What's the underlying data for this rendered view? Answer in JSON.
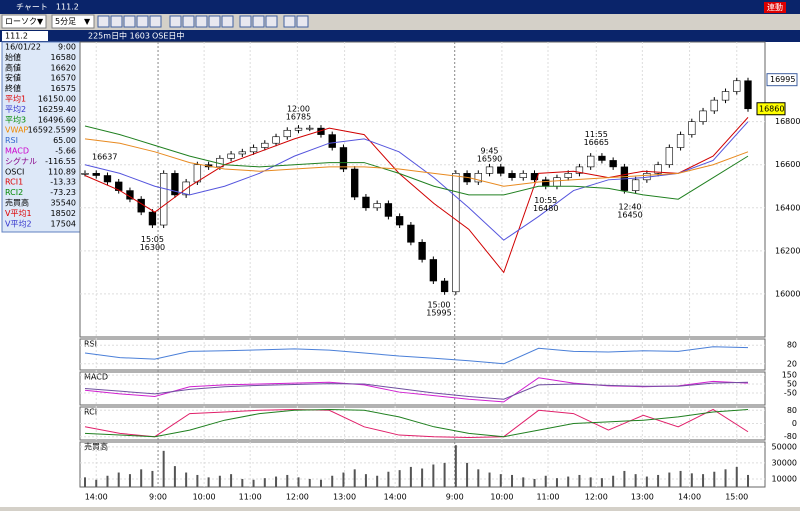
{
  "window": {
    "title": "チャート　111.2",
    "button": "連動"
  },
  "toolbar": {
    "style": "ローソク",
    "period": "5分足"
  },
  "symbol_bar": {
    "code": "111.2",
    "name": "225m日中 1603",
    "session": "OSE日中"
  },
  "info": {
    "rows": [
      [
        "16/01/22",
        "9:00"
      ],
      [
        "始値",
        "16580"
      ],
      [
        "高値",
        "16620"
      ],
      [
        "安値",
        "16570"
      ],
      [
        "終値",
        "16575"
      ],
      [
        "平均1",
        "16150.00"
      ],
      [
        "平均2",
        "16259.40"
      ],
      [
        "平均3",
        "16496.60"
      ],
      [
        "VWAP",
        "16592.5599"
      ],
      [
        "RSI",
        "65.00"
      ],
      [
        "MACD",
        "-5.66"
      ],
      [
        "シグナル",
        "-116.55"
      ],
      [
        "OSCI",
        "110.89"
      ],
      [
        "RCI1",
        "-13.33"
      ],
      [
        "RCI2",
        "-73.23"
      ],
      [
        "売買高",
        "35540"
      ],
      [
        "V平均1",
        "18502"
      ],
      [
        "V平均2",
        "17504"
      ]
    ],
    "colors": [
      "#000",
      "#000",
      "#000",
      "#000",
      "#000",
      "#d00",
      "#33c",
      "#080",
      "#e80",
      "#36c",
      "#c0c",
      "#808",
      "#000",
      "#d00",
      "#080",
      "#000",
      "#d00",
      "#33c"
    ]
  },
  "chart_data": {
    "type": "candlestick",
    "xlim": [
      0,
      59
    ],
    "xticks": [
      {
        "value": 1,
        "label": "14:00"
      },
      {
        "value": 6.5,
        "label": "9:00"
      },
      {
        "value": 10.6,
        "label": "10:00"
      },
      {
        "value": 14.7,
        "label": "11:00"
      },
      {
        "value": 18.9,
        "label": "12:00"
      },
      {
        "value": 23.1,
        "label": "13:00"
      },
      {
        "value": 27.6,
        "label": "14:00"
      },
      {
        "value": 32.9,
        "label": "9:00"
      },
      {
        "value": 37.1,
        "label": "10:00"
      },
      {
        "value": 41.2,
        "label": "11:00"
      },
      {
        "value": 45.5,
        "label": "12:00"
      },
      {
        "value": 49.6,
        "label": "13:00"
      },
      {
        "value": 53.8,
        "label": "14:00"
      },
      {
        "value": 58,
        "label": "15:00"
      }
    ],
    "ylim": [
      15800,
      17170
    ],
    "yticks": [
      16000,
      16200,
      16400,
      16600,
      16800
    ],
    "high_label": 16995,
    "last_label": 16860,
    "left_label": 16637,
    "close": [
      16560,
      16550,
      16520,
      16480,
      16440,
      16380,
      16320,
      16560,
      16460,
      16520,
      16600,
      16590,
      16630,
      16650,
      16660,
      16680,
      16700,
      16730,
      16760,
      16770,
      16770,
      16740,
      16680,
      16580,
      16450,
      16400,
      16420,
      16360,
      16320,
      16240,
      16160,
      16060,
      16010,
      16560,
      16520,
      16560,
      16590,
      16560,
      16540,
      16560,
      16530,
      16500,
      16540,
      16560,
      16590,
      16640,
      16620,
      16590,
      16480,
      16530,
      16560,
      16600,
      16680,
      16740,
      16800,
      16850,
      16900,
      16940,
      16990,
      16860
    ],
    "series": [
      {
        "name": "平均1",
        "color": "#d00000",
        "values": [
          16550,
          16480,
          16380,
          16500,
          16600,
          16660,
          16720,
          16770,
          16740,
          16560,
          16420,
          16300,
          16100,
          16560,
          16570,
          16540,
          16570,
          16560,
          16640,
          16820
        ]
      },
      {
        "name": "平均2",
        "color": "#5555dd",
        "values": [
          16600,
          16560,
          16500,
          16460,
          16500,
          16560,
          16640,
          16700,
          16720,
          16660,
          16540,
          16400,
          16250,
          16360,
          16480,
          16530,
          16540,
          16560,
          16620,
          16800
        ]
      },
      {
        "name": "平均3",
        "color": "#208020",
        "values": [
          16780,
          16740,
          16690,
          16640,
          16600,
          16590,
          16600,
          16610,
          16610,
          16560,
          16500,
          16460,
          16460,
          16500,
          16500,
          16490,
          16460,
          16440,
          16540,
          16640
        ]
      },
      {
        "name": "VWAP",
        "color": "#e88a20",
        "values": [
          16720,
          16700,
          16660,
          16610,
          16580,
          16570,
          16580,
          16590,
          16590,
          16580,
          16560,
          16540,
          16500,
          16520,
          16530,
          16540,
          16550,
          16560,
          16600,
          16660
        ]
      }
    ],
    "annotations": [
      {
        "time": "15:05",
        "price": 16300,
        "x": 6
      },
      {
        "time": "12:00",
        "price": 16785,
        "x": 19
      },
      {
        "time": "15:00",
        "price": 15995,
        "x": 31.5
      },
      {
        "time": "9:45",
        "price": 16590,
        "x": 36
      },
      {
        "time": "10:55",
        "price": 16480,
        "x": 41
      },
      {
        "time": "11:55",
        "price": 16665,
        "x": 45.5
      },
      {
        "time": "12:40",
        "price": 16450,
        "x": 48.5
      }
    ],
    "panels": [
      {
        "label": "RSI",
        "ylim": [
          0,
          100
        ],
        "yticks": [
          20,
          80
        ],
        "series": [
          {
            "color": "#4a7fd8",
            "values": [
              55,
              40,
              35,
              60,
              62,
              65,
              68,
              64,
              55,
              45,
              38,
              30,
              20,
              70,
              60,
              58,
              62,
              60,
              75,
              72
            ]
          }
        ]
      },
      {
        "label": "MACD",
        "ylim": [
          -185,
          185
        ],
        "yticks": [
          -50,
          50,
          150
        ],
        "series": [
          {
            "color": "#d020d0",
            "values": [
              -20,
              -60,
              -90,
              20,
              40,
              50,
              60,
              70,
              40,
              -40,
              -80,
              -120,
              -150,
              120,
              60,
              30,
              20,
              30,
              80,
              60
            ]
          },
          {
            "color": "#7050a0",
            "values": [
              0,
              -30,
              -60,
              -10,
              20,
              35,
              45,
              55,
              50,
              0,
              -50,
              -90,
              -120,
              40,
              50,
              35,
              25,
              25,
              60,
              70
            ]
          }
        ]
      },
      {
        "label": "RCI",
        "ylim": [
          -100,
          100
        ],
        "yticks": [
          -80,
          0,
          80
        ],
        "series": [
          {
            "color": "#e0206a",
            "values": [
              -20,
              -60,
              -80,
              60,
              70,
              80,
              85,
              80,
              -20,
              -70,
              -80,
              -85,
              -80,
              80,
              60,
              -40,
              50,
              -20,
              85,
              -50
            ]
          },
          {
            "color": "#208020",
            "values": [
              -60,
              -70,
              -80,
              -40,
              20,
              60,
              80,
              85,
              80,
              40,
              -20,
              -60,
              -80,
              -40,
              0,
              10,
              20,
              40,
              70,
              85
            ]
          }
        ]
      },
      {
        "label": "売買高",
        "ylim": [
          0,
          56000
        ],
        "yticks": [
          10000,
          30000,
          50000
        ],
        "bars": [
          12000,
          9000,
          14000,
          18000,
          16000,
          22000,
          20000,
          45000,
          26000,
          18000,
          15000,
          12000,
          14000,
          16000,
          10000,
          9000,
          11000,
          13000,
          15000,
          12000,
          10000,
          9000,
          14000,
          18000,
          22000,
          16000,
          14000,
          19000,
          21000,
          25000,
          23000,
          28000,
          30000,
          52000,
          30000,
          22000,
          18000,
          16000,
          15000,
          12000,
          10000,
          14000,
          11000,
          13000,
          15000,
          12000,
          11000,
          14000,
          20000,
          16000,
          13000,
          15000,
          18000,
          20000,
          17000,
          16000,
          19000,
          22000,
          25000,
          15000
        ]
      }
    ]
  }
}
